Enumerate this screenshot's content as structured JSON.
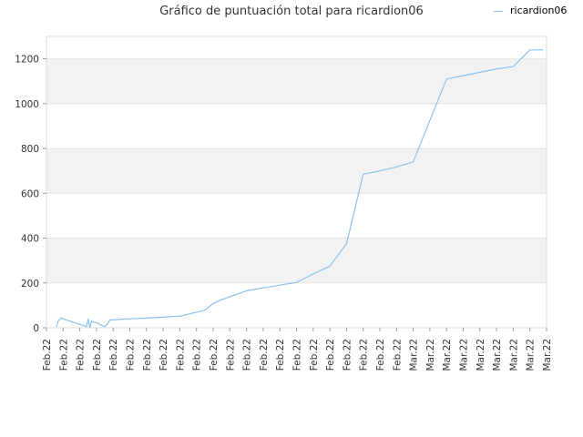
{
  "chart_data": {
    "type": "line",
    "title": "Gráfico de puntuación total para ricardion06",
    "xlabel": "",
    "ylabel": "",
    "ylim": [
      0,
      1300
    ],
    "yticks": [
      0,
      200,
      400,
      600,
      800,
      1000,
      1200
    ],
    "x_tick_labels": [
      "Feb.22",
      "Feb.22",
      "Feb.22",
      "Feb.22",
      "Feb.22",
      "Feb.22",
      "Feb.22",
      "Feb.22",
      "Feb.22",
      "Feb.22",
      "Feb.22",
      "Feb.22",
      "Feb.22",
      "Feb.22",
      "Feb.22",
      "Feb.22",
      "Feb.22",
      "Feb.22",
      "Feb.22",
      "Feb.22",
      "Feb.22",
      "Feb.22",
      "Mar.22",
      "Mar.22",
      "Mar.22",
      "Mar.22",
      "Mar.22",
      "Mar.22",
      "Mar.22",
      "Mar.22",
      "Mar.22"
    ],
    "grid": "horizontal bands",
    "legend_position": "top-right",
    "series": [
      {
        "name": "ricardion06",
        "color": "#8cc0ec",
        "x": [
          0.6,
          0.7,
          0.9,
          1.0,
          2.4,
          2.5,
          2.6,
          2.7,
          2.8,
          3.0,
          3.2,
          3.5,
          3.7,
          3.8,
          4.0,
          4.5,
          5.0,
          6.0,
          7.0,
          8.0,
          9.5,
          10.0,
          10.5,
          11.0,
          12.0,
          13.0,
          14.0,
          15.0,
          16.0,
          17.0,
          18.0,
          19.0,
          20.0,
          21.0,
          22.0,
          23.0,
          24.0,
          25.0,
          26.0,
          27.0,
          28.0,
          29.0,
          29.8
        ],
        "y": [
          5,
          30,
          45,
          40,
          5,
          40,
          0,
          30,
          25,
          22,
          15,
          5,
          20,
          35,
          35,
          38,
          40,
          43,
          47,
          52,
          78,
          108,
          125,
          138,
          165,
          178,
          190,
          202,
          240,
          275,
          375,
          685,
          700,
          718,
          740,
          925,
          1110,
          1125,
          1140,
          1155,
          1165,
          1240,
          1240
        ]
      }
    ]
  }
}
